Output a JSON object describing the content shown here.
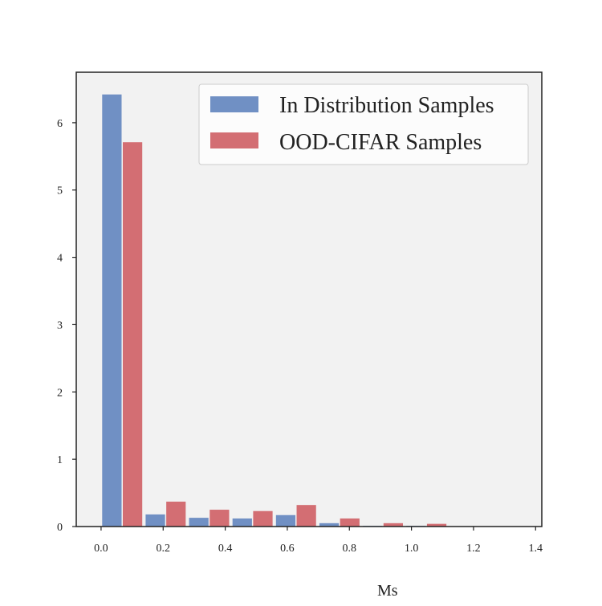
{
  "chart_data": {
    "type": "bar",
    "bin_width": 0.14,
    "bins": [
      0.07,
      0.21,
      0.35,
      0.49,
      0.63,
      0.77,
      0.91,
      1.05,
      1.19,
      1.33
    ],
    "series": [
      {
        "name": "In Distribution Samples",
        "color": "#7090c4",
        "values": [
          6.42,
          0.18,
          0.13,
          0.12,
          0.17,
          0.05,
          0.01,
          0.01,
          0.0,
          0.0
        ]
      },
      {
        "name": "OOD-CIFAR Samples",
        "color": "#d36e73",
        "values": [
          5.71,
          0.37,
          0.25,
          0.23,
          0.32,
          0.12,
          0.05,
          0.04,
          0.0,
          0.0
        ]
      }
    ],
    "xlim": [
      -0.08,
      1.42
    ],
    "ylim": [
      0,
      6.75
    ],
    "xticks": [
      "0.0",
      "0.2",
      "0.4",
      "0.6",
      "0.8",
      "1.0",
      "1.2",
      "1.4"
    ],
    "yticks": [
      "0",
      "1",
      "2",
      "3",
      "4",
      "5",
      "6"
    ],
    "xlabel_partial": "Ms",
    "grid": false,
    "legend": "top-right",
    "background": "#f2f2f2"
  }
}
